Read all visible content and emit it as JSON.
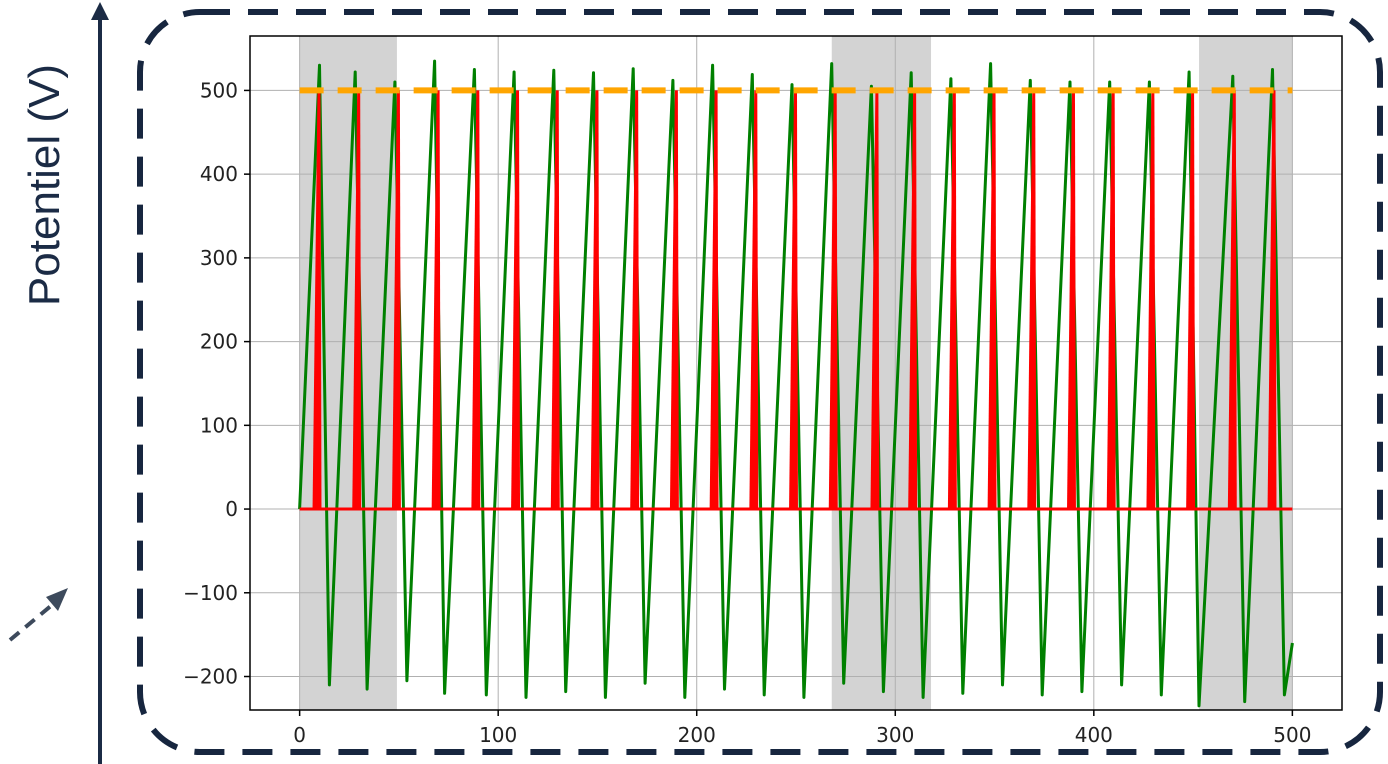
{
  "chart_data": {
    "type": "line",
    "ylabel": "Potentiel (V)",
    "xlabel": "",
    "title": "",
    "xlim": [
      -25,
      525
    ],
    "ylim": [
      -240,
      565
    ],
    "xticks": [
      0,
      100,
      200,
      300,
      400,
      500
    ],
    "yticks": [
      -200,
      -100,
      0,
      100,
      200,
      300,
      400,
      500
    ],
    "xtick_labels": [
      "0",
      "100",
      "200",
      "300",
      "400",
      "500"
    ],
    "ytick_labels": [
      "−200",
      "−100",
      "0",
      "100",
      "200",
      "300",
      "400",
      "500"
    ],
    "grid": true,
    "threshold": {
      "value": 500,
      "x_range": [
        0,
        500
      ],
      "color": "#ffa500",
      "style": "dashed"
    },
    "shaded_regions": [
      {
        "x": [
          0,
          49
        ],
        "color": "#d3d3d3"
      },
      {
        "x": [
          268,
          318
        ],
        "color": "#d3d3d3"
      },
      {
        "x": [
          453,
          500
        ],
        "color": "#d3d3d3"
      }
    ],
    "series": [
      {
        "color": "#008000",
        "style": "line",
        "x": [
          0,
          10,
          15,
          28,
          34,
          48,
          54,
          68,
          73,
          88,
          94,
          108,
          114,
          128,
          134,
          148,
          154,
          168,
          174,
          188,
          194,
          208,
          214,
          228,
          234,
          248,
          254,
          268,
          274,
          288,
          294,
          308,
          314,
          328,
          334,
          348,
          354,
          368,
          374,
          388,
          394,
          408,
          414,
          428,
          434,
          448,
          453,
          470,
          476,
          490,
          496,
          500
        ],
        "y": [
          0,
          530,
          -210,
          522,
          -215,
          510,
          -205,
          535,
          -220,
          525,
          -222,
          522,
          -225,
          524,
          -218,
          521,
          -225,
          526,
          -208,
          512,
          -225,
          530,
          -215,
          519,
          -222,
          507,
          -225,
          532,
          -208,
          505,
          -218,
          521,
          -225,
          514,
          -220,
          532,
          -210,
          512,
          -222,
          510,
          -218,
          510,
          -210,
          510,
          -222,
          522,
          -235,
          517,
          -230,
          525,
          -222,
          -160
        ]
      },
      {
        "color": "#ff0000",
        "style": "spikes",
        "baseline": 0,
        "spike_x": [
          9,
          29,
          49,
          69,
          89,
          109,
          129,
          149,
          169,
          189,
          209,
          229,
          249,
          269,
          290,
          309,
          329,
          349,
          369,
          389,
          409,
          429,
          449,
          470,
          490
        ],
        "spike_y": [
          500,
          500,
          500,
          500,
          500,
          500,
          500,
          500,
          500,
          500,
          500,
          500,
          500,
          500,
          500,
          500,
          500,
          500,
          500,
          500,
          500,
          500,
          500,
          500,
          500
        ]
      }
    ]
  }
}
